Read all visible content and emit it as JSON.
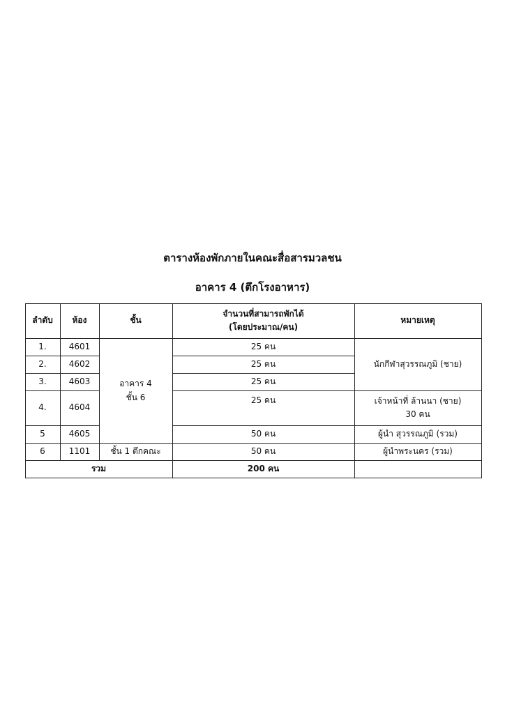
{
  "title": "ตารางห้องพักภายในคณะสื่อสารมวลชน",
  "subtitle": "อาคาร 4 (ตึกโรงอาหาร)",
  "table": {
    "headers": {
      "order": "ลำดับ",
      "room": "ห้อง",
      "floor": "ชั้น",
      "capacity_line1": "จำนวนที่สามารถพักได้",
      "capacity_line2": "(โดยประมาณ/คน)",
      "remark": "หมายเหตุ"
    },
    "rows": [
      {
        "order": "1.",
        "room": "4601",
        "capacity": "25 คน"
      },
      {
        "order": "2.",
        "room": "4602",
        "capacity": "25 คน"
      },
      {
        "order": "3.",
        "room": "4603",
        "capacity": "25 คน"
      },
      {
        "order": "4.",
        "room": "4604",
        "capacity": "25 คน"
      },
      {
        "order": "5",
        "room": "4605",
        "capacity": "50 คน"
      },
      {
        "order": "6",
        "room": "1101",
        "capacity": "50 คน"
      }
    ],
    "floor_group_line1": "อาคาร 4",
    "floor_group_line2": "ชั้น 6",
    "floor_row6": "ชั้น 1 ตึกคณะ",
    "remark_rows_1_3": "นักกีฬาสุวรรณภูมิ  (ชาย)",
    "remark_row4_line1": "เจ้าหน้าที่  ล้านนา (ชาย)",
    "remark_row4_line2": "30 คน",
    "remark_row5": "ผู้นำ สุวรรณภูมิ (รวม)",
    "remark_row6": "ผู้นำพระนคร (รวม)",
    "total_label": "รวม",
    "total_value": "200 คน"
  }
}
